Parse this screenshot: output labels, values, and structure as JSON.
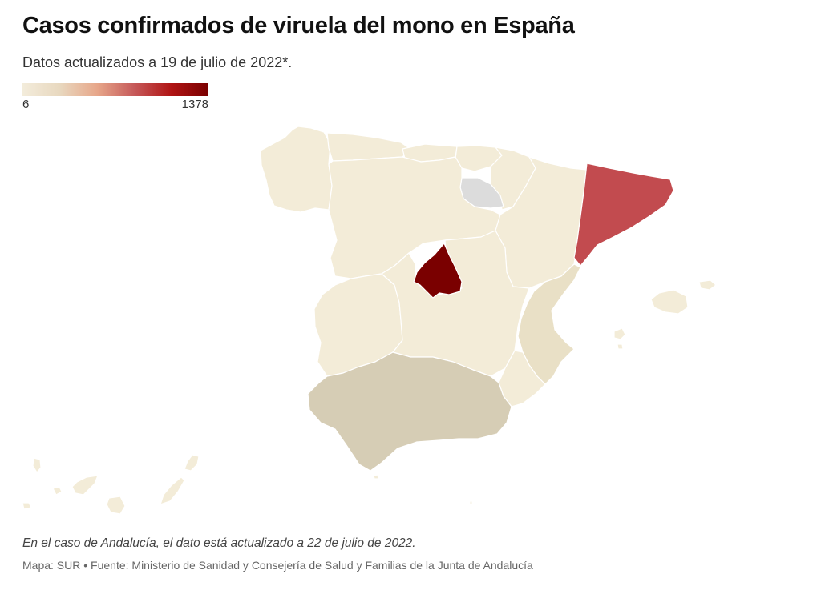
{
  "header": {
    "title": "Casos confirmados de viruela del mono en España",
    "subtitle": "Datos actualizados a 19 de julio de 2022*."
  },
  "legend": {
    "min_label": "6",
    "max_label": "1378",
    "colors": [
      "#f3ecdb",
      "#e8d8bf",
      "#e7a78a",
      "#c65a5a",
      "#b01414",
      "#7a0000"
    ]
  },
  "colors": {
    "low": "#f3ecd8",
    "andalucia": "#d6cdb5",
    "valencia": "#e9e0c6",
    "cataluna": "#c24b4f",
    "madrid": "#7a0000",
    "no_data": "#dcdcdc"
  },
  "footer": {
    "note": "En el caso de Andalucía, el dato está actualizado a 22 de julio de 2022.",
    "source": "Mapa: SUR • Fuente: Ministerio de Sanidad y Consejería de Salud y Familias de la Junta de Andalucía"
  }
}
